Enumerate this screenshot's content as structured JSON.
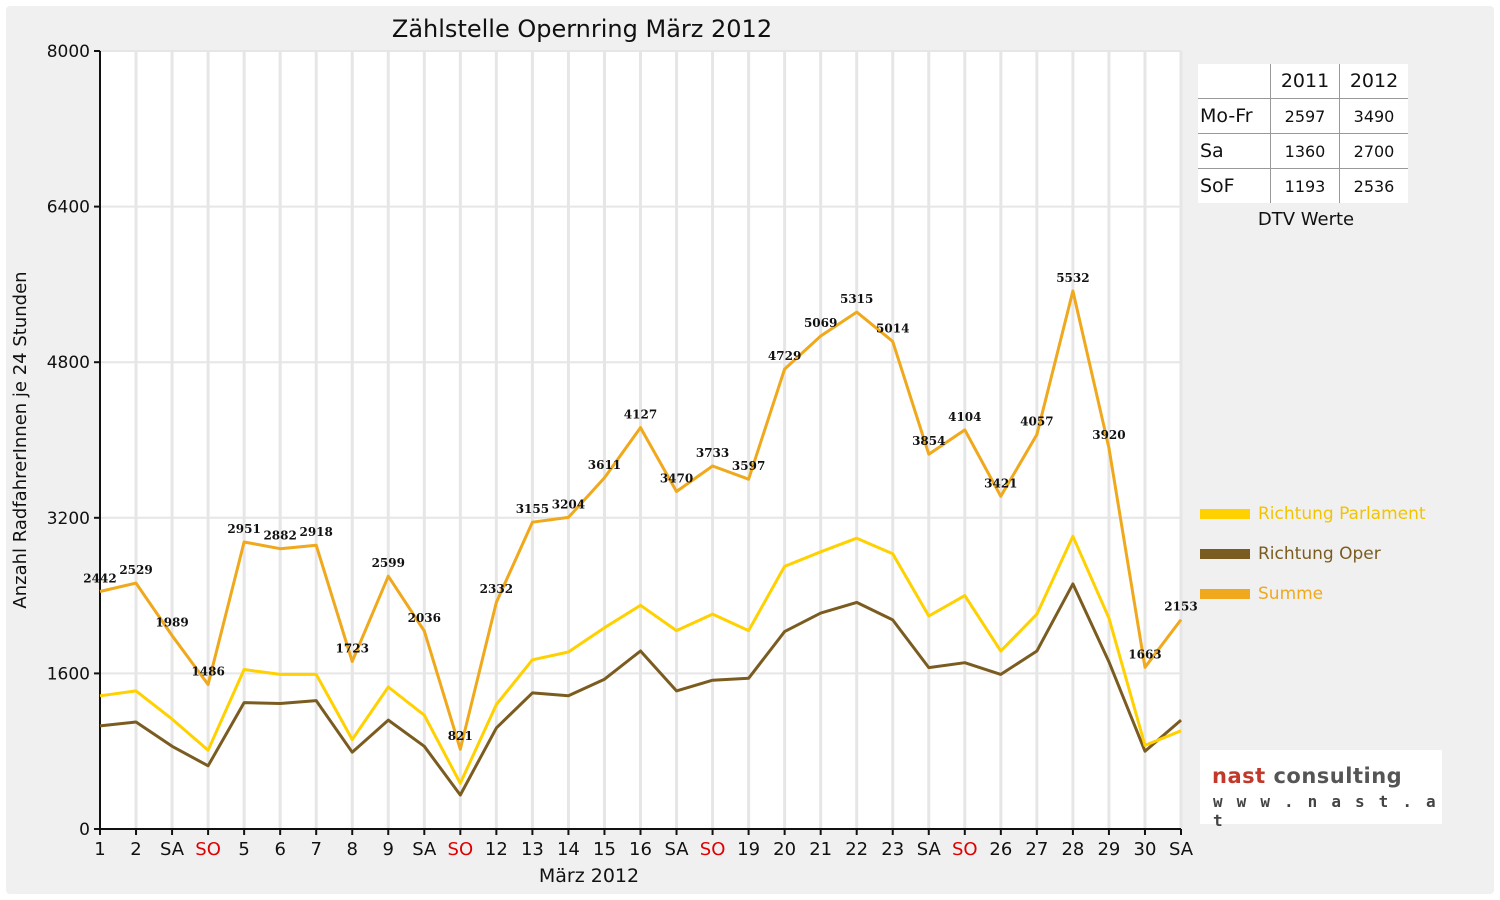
{
  "chart_data": {
    "type": "line",
    "title": "Zählstelle Opernring März 2012",
    "xlabel": "März 2012",
    "ylabel": "Anzahl RadfahrerInnen je 24 Stunden",
    "ylim": [
      0,
      8000
    ],
    "yticks": [
      "0",
      "1600",
      "3200",
      "4800",
      "6400",
      "8000"
    ],
    "grid": "vertical",
    "legend_position": "right",
    "categories": [
      "1",
      "2",
      "SA",
      "SO",
      "5",
      "6",
      "7",
      "8",
      "9",
      "SA",
      "SO",
      "12",
      "13",
      "14",
      "15",
      "16",
      "SA",
      "SO",
      "19",
      "20",
      "21",
      "22",
      "23",
      "SA",
      "SO",
      "26",
      "27",
      "28",
      "29",
      "30",
      "SA"
    ],
    "highlight_category": "SO",
    "highlight_color": "#e00000",
    "series": [
      {
        "name": "Richtung Parlament",
        "color": "#ffd100",
        "values": [
          1370,
          1420,
          1130,
          810,
          1640,
          1590,
          1590,
          920,
          1460,
          1170,
          470,
          1280,
          1740,
          1820,
          2070,
          2300,
          2040,
          2210,
          2040,
          2700,
          2850,
          2990,
          2830,
          2190,
          2400,
          1830,
          2210,
          3010,
          2170,
          860,
          1010
        ]
      },
      {
        "name": "Richtung Oper",
        "color": "#7b5c20",
        "values": [
          1060,
          1100,
          850,
          650,
          1300,
          1290,
          1320,
          790,
          1120,
          850,
          350,
          1040,
          1400,
          1370,
          1540,
          1830,
          1420,
          1530,
          1550,
          2030,
          2220,
          2330,
          2150,
          1660,
          1710,
          1590,
          1830,
          2520,
          1720,
          800,
          1120
        ]
      },
      {
        "name": "Summe",
        "color": "#f0a81c",
        "values": [
          2442,
          2529,
          1989,
          1486,
          2951,
          2882,
          2918,
          1723,
          2599,
          2036,
          821,
          2332,
          3155,
          3204,
          3611,
          4127,
          3470,
          3733,
          3597,
          4729,
          5069,
          5315,
          5014,
          3854,
          4104,
          3421,
          4057,
          5532,
          3920,
          1663,
          2153
        ]
      }
    ],
    "data_labels": [
      "2442",
      "2529",
      "1989",
      "1486",
      "2951",
      "2882",
      "2918",
      "1723",
      "2599",
      "2036",
      "821",
      "2332",
      "3155",
      "3204",
      "3611",
      "4127",
      "3470",
      "3733",
      "3597",
      "4729",
      "5069",
      "5315",
      "5014",
      "3854",
      "4104",
      "3421",
      "4057",
      "5532",
      "3920",
      "1663",
      "2153"
    ]
  },
  "dtv_table": {
    "headers": [
      "2011",
      "2012"
    ],
    "rows": [
      {
        "label": "Mo-Fr",
        "v2011": "2597",
        "v2012": "3490"
      },
      {
        "label": "Sa",
        "v2011": "1360",
        "v2012": "2700"
      },
      {
        "label": "SoF",
        "v2011": "1193",
        "v2012": "2536"
      }
    ],
    "caption": "DTV Werte"
  },
  "logo": {
    "part1": "nast",
    "part2": "consulting",
    "url": "w w w . n a s t . a t"
  }
}
